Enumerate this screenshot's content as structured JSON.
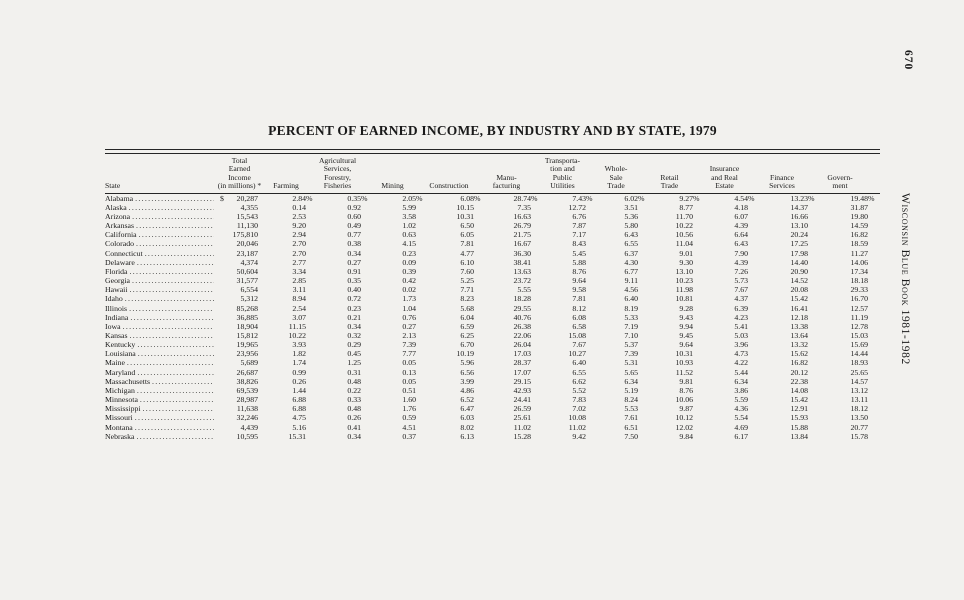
{
  "page": {
    "number": "670",
    "side_title": "Wisconsin Blue Book 1981-1982"
  },
  "table": {
    "title": "PERCENT OF EARNED INCOME, BY INDUSTRY AND BY STATE, 1979",
    "columns": [
      "State",
      "Total\nEarned\nIncome\n(in millions) *",
      "Farming",
      "Agricultural\nServices,\nForestry,\nFisheries",
      "Mining",
      "Construction",
      "Manu-\nfacturing",
      "Transporta-\ntion and\nPublic\nUtilities",
      "Whole-\nSale\nTrade",
      "Retail\nTrade",
      "Insurance\nand Real\nEstate",
      "Finance\nServices",
      "Govern-\nment"
    ],
    "rows": [
      {
        "state": "Alabama",
        "dollar": "$",
        "income": "20,287",
        "values": [
          "2.84%",
          "0.35%",
          "2.05%",
          "6.08%",
          "28.74%",
          "7.43%",
          "6.02%",
          "9.27%",
          "4.54%",
          "13.23%",
          "19.48%"
        ]
      },
      {
        "state": "Alaska",
        "dollar": "",
        "income": "4,355",
        "values": [
          "0.14",
          "0.92",
          "5.99",
          "10.15",
          "7.35",
          "12.72",
          "3.51",
          "8.77",
          "4.18",
          "14.37",
          "31.87"
        ]
      },
      {
        "state": "Arizona",
        "dollar": "",
        "income": "15,543",
        "values": [
          "2.53",
          "0.60",
          "3.58",
          "10.31",
          "16.63",
          "6.76",
          "5.36",
          "11.70",
          "6.07",
          "16.66",
          "19.80"
        ]
      },
      {
        "state": "Arkansas",
        "dollar": "",
        "income": "11,130",
        "values": [
          "9.20",
          "0.49",
          "1.02",
          "6.50",
          "26.79",
          "7.87",
          "5.80",
          "10.22",
          "4.39",
          "13.10",
          "14.59"
        ]
      },
      {
        "state": "California",
        "dollar": "",
        "income": "175,810",
        "values": [
          "2.94",
          "0.77",
          "0.63",
          "6.05",
          "21.75",
          "7.17",
          "6.43",
          "10.56",
          "6.64",
          "20.24",
          "16.82"
        ]
      },
      {
        "state": "Colorado",
        "dollar": "",
        "income": "20,046",
        "values": [
          "2.70",
          "0.38",
          "4.15",
          "7.81",
          "16.67",
          "8.43",
          "6.55",
          "11.04",
          "6.43",
          "17.25",
          "18.59"
        ]
      },
      {
        "state": "Connecticut",
        "dollar": "",
        "income": "23,187",
        "values": [
          "2.70",
          "0.34",
          "0.23",
          "4.77",
          "36.30",
          "5.45",
          "6.37",
          "9.01",
          "7.90",
          "17.98",
          "11.27"
        ]
      },
      {
        "state": "Delaware",
        "dollar": "",
        "income": "4,374",
        "values": [
          "2.77",
          "0.27",
          "0.09",
          "6.10",
          "38.41",
          "5.88",
          "4.30",
          "9.30",
          "4.39",
          "14.40",
          "14.06"
        ]
      },
      {
        "state": "Florida",
        "dollar": "",
        "income": "50,604",
        "values": [
          "3.34",
          "0.91",
          "0.39",
          "7.60",
          "13.63",
          "8.76",
          "6.77",
          "13.10",
          "7.26",
          "20.90",
          "17.34"
        ]
      },
      {
        "state": "Georgia",
        "dollar": "",
        "income": "31,577",
        "values": [
          "2.85",
          "0.35",
          "0.42",
          "5.25",
          "23.72",
          "9.64",
          "9.11",
          "10.23",
          "5.73",
          "14.52",
          "18.18"
        ]
      },
      {
        "state": "Hawaii",
        "dollar": "",
        "income": "6,554",
        "values": [
          "3.11",
          "0.40",
          "0.02",
          "7.71",
          "5.55",
          "9.58",
          "4.56",
          "11.98",
          "7.67",
          "20.08",
          "29.33"
        ]
      },
      {
        "state": "Idaho",
        "dollar": "",
        "income": "5,312",
        "values": [
          "8.94",
          "0.72",
          "1.73",
          "8.23",
          "18.28",
          "7.81",
          "6.40",
          "10.81",
          "4.37",
          "15.42",
          "16.70"
        ]
      },
      {
        "state": "Illinois",
        "dollar": "",
        "income": "85,268",
        "values": [
          "2.54",
          "0.23",
          "1.04",
          "5.68",
          "29.55",
          "8.12",
          "8.19",
          "9.28",
          "6.39",
          "16.41",
          "12.57"
        ]
      },
      {
        "state": "Indiana",
        "dollar": "",
        "income": "36,885",
        "values": [
          "3.07",
          "0.21",
          "0.76",
          "6.04",
          "40.76",
          "6.08",
          "5.33",
          "9.43",
          "4.23",
          "12.18",
          "11.19"
        ]
      },
      {
        "state": "Iowa",
        "dollar": "",
        "income": "18,904",
        "values": [
          "11.15",
          "0.34",
          "0.27",
          "6.59",
          "26.38",
          "6.58",
          "7.19",
          "9.94",
          "5.41",
          "13.38",
          "12.78"
        ]
      },
      {
        "state": "Kansas",
        "dollar": "",
        "income": "15,812",
        "values": [
          "10.22",
          "0.32",
          "2.13",
          "6.25",
          "22.06",
          "15.08",
          "7.10",
          "9.45",
          "5.03",
          "13.64",
          "15.03"
        ]
      },
      {
        "state": "Kentucky",
        "dollar": "",
        "income": "19,965",
        "values": [
          "3.93",
          "0.29",
          "7.39",
          "6.70",
          "26.04",
          "7.67",
          "5.37",
          "9.64",
          "3.96",
          "13.32",
          "15.69"
        ]
      },
      {
        "state": "Louisiana",
        "dollar": "",
        "income": "23,956",
        "values": [
          "1.82",
          "0.45",
          "7.77",
          "10.19",
          "17.03",
          "10.27",
          "7.39",
          "10.31",
          "4.73",
          "15.62",
          "14.44"
        ]
      },
      {
        "state": "Maine",
        "dollar": "",
        "income": "5,689",
        "values": [
          "1.74",
          "1.25",
          "0.05",
          "5.96",
          "28.37",
          "6.40",
          "5.31",
          "10.93",
          "4.22",
          "16.82",
          "18.93"
        ]
      },
      {
        "state": "Maryland",
        "dollar": "",
        "income": "26,687",
        "values": [
          "0.99",
          "0.31",
          "0.13",
          "6.56",
          "17.07",
          "6.55",
          "5.65",
          "11.52",
          "5.44",
          "20.12",
          "25.65"
        ]
      },
      {
        "state": "Massachusetts",
        "dollar": "",
        "income": "38,826",
        "values": [
          "0.26",
          "0.48",
          "0.05",
          "3.99",
          "29.15",
          "6.62",
          "6.34",
          "9.81",
          "6.34",
          "22.38",
          "14.57"
        ]
      },
      {
        "state": "Michigan",
        "dollar": "",
        "income": "69,539",
        "values": [
          "1.44",
          "0.22",
          "0.51",
          "4.86",
          "42.93",
          "5.52",
          "5.19",
          "8.76",
          "3.86",
          "14.08",
          "13.12"
        ]
      },
      {
        "state": "Minnesota",
        "dollar": "",
        "income": "28,987",
        "values": [
          "6.88",
          "0.33",
          "1.60",
          "6.52",
          "24.41",
          "7.83",
          "8.24",
          "10.06",
          "5.59",
          "15.42",
          "13.11"
        ]
      },
      {
        "state": "Mississippi",
        "dollar": "",
        "income": "11,638",
        "values": [
          "6.88",
          "0.48",
          "1.76",
          "6.47",
          "26.59",
          "7.02",
          "5.53",
          "9.87",
          "4.36",
          "12.91",
          "18.12"
        ]
      },
      {
        "state": "Missouri",
        "dollar": "",
        "income": "32,246",
        "values": [
          "4.75",
          "0.26",
          "0.59",
          "6.03",
          "25.61",
          "10.08",
          "7.61",
          "10.12",
          "5.54",
          "15.93",
          "13.50"
        ]
      },
      {
        "state": "Montana",
        "dollar": "",
        "income": "4,439",
        "values": [
          "5.16",
          "0.41",
          "4.51",
          "8.02",
          "11.02",
          "11.02",
          "6.51",
          "12.02",
          "4.69",
          "15.88",
          "20.77"
        ]
      },
      {
        "state": "Nebraska",
        "dollar": "",
        "income": "10,595",
        "values": [
          "15.31",
          "0.34",
          "0.37",
          "6.13",
          "15.28",
          "9.42",
          "7.50",
          "9.84",
          "6.17",
          "13.84",
          "15.78"
        ]
      }
    ]
  }
}
